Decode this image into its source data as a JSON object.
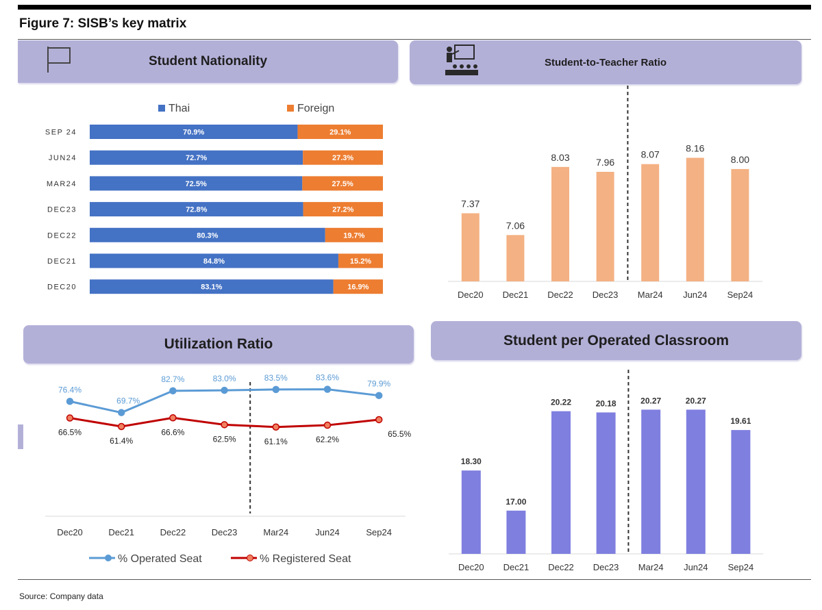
{
  "figure_title": "Figure 7: SISB’s key matrix",
  "source": "Source: Company data",
  "panels": {
    "nationality": {
      "header": "Student Nationality",
      "icon": "flag-icon"
    },
    "ratio": {
      "header": "Student-to-Teacher Ratio",
      "icon": "teacher-class-icon"
    },
    "utilization": {
      "header": "Utilization Ratio"
    },
    "classroom": {
      "header": "Student per Operated Classroom"
    }
  },
  "colors": {
    "thai": "#4472c4",
    "foreign": "#ed7d31",
    "ratio_bar": "#f4b183",
    "classroom_bar": "#7f7fe0",
    "operated": "#5b9bd5",
    "registered": "#c00000",
    "header_bg": "#b3b0d8"
  },
  "chart_data": [
    {
      "id": "nationality",
      "type": "bar",
      "orientation": "horizontal",
      "stacked": true,
      "title": "Student Nationality",
      "categories": [
        "SEP 24",
        "JUN24",
        "MAR24",
        "DEC23",
        "DEC22",
        "DEC21",
        "DEC20"
      ],
      "series": [
        {
          "name": "Thai",
          "values": [
            70.9,
            72.7,
            72.5,
            72.8,
            80.3,
            84.8,
            83.1
          ],
          "labels": [
            "70.9%",
            "72.7%",
            "72.5%",
            "72.8%",
            "80.3%",
            "84.8%",
            "83.1%"
          ]
        },
        {
          "name": "Foreign",
          "values": [
            29.1,
            27.3,
            27.5,
            27.2,
            19.7,
            15.2,
            16.9
          ],
          "labels": [
            "29.1%",
            "27.3%",
            "27.5%",
            "27.2%",
            "19.7%",
            "15.2%",
            "16.9%"
          ]
        }
      ],
      "xlim": [
        0,
        100
      ],
      "legend": "top"
    },
    {
      "id": "ratio",
      "type": "bar",
      "title": "Student-to-Teacher Ratio",
      "categories": [
        "Dec20",
        "Dec21",
        "Dec22",
        "Dec23",
        "Mar24",
        "Jun24",
        "Sep24"
      ],
      "values": [
        7.37,
        7.06,
        8.03,
        7.96,
        8.07,
        8.16,
        8.0
      ],
      "labels": [
        "7.37",
        "7.06",
        "8.03",
        "7.96",
        "8.07",
        "8.16",
        "8.00"
      ],
      "ylim": [
        6.4,
        8.35
      ],
      "divider_after": "Dec23"
    },
    {
      "id": "utilization",
      "type": "line",
      "title": "Utilization Ratio",
      "categories": [
        "Dec20",
        "Dec21",
        "Dec22",
        "Dec23",
        "Mar24",
        "Jun24",
        "Sep24"
      ],
      "series": [
        {
          "name": "% Operated Seat",
          "values": [
            76.4,
            69.7,
            82.7,
            83.0,
            83.5,
            83.6,
            79.9
          ],
          "labels": [
            "76.4%",
            "69.7%",
            "82.7%",
            "83.0%",
            "83.5%",
            "83.6%",
            "79.9%"
          ]
        },
        {
          "name": "% Registered Seat",
          "values": [
            66.5,
            61.4,
            66.6,
            62.5,
            61.1,
            62.2,
            65.5
          ],
          "labels": [
            "66.5%",
            "61.4%",
            "66.6%",
            "62.5%",
            "61.1%",
            "62.2%",
            "65.5%"
          ]
        }
      ],
      "divider_after": "Dec23",
      "legend": "bottom"
    },
    {
      "id": "classroom",
      "type": "bar",
      "title": "Student per Operated Classroom",
      "categories": [
        "Dec20",
        "Dec21",
        "Dec22",
        "Dec23",
        "Mar24",
        "Jun24",
        "Sep24"
      ],
      "values": [
        18.3,
        17.0,
        20.22,
        20.18,
        20.27,
        20.27,
        19.61
      ],
      "labels": [
        "18.30",
        "17.00",
        "20.22",
        "20.18",
        "20.27",
        "20.27",
        "19.61"
      ],
      "ylim": [
        15.6,
        20.5
      ],
      "divider_after": "Dec23"
    }
  ]
}
